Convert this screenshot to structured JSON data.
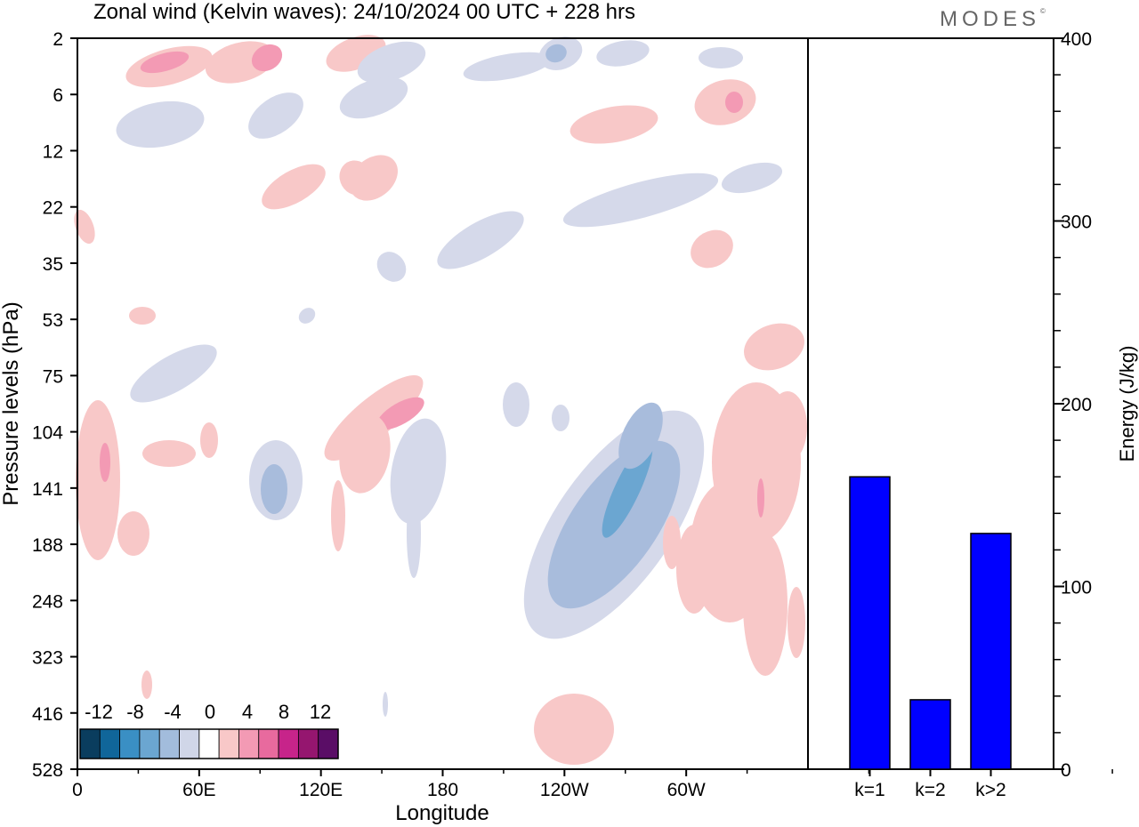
{
  "header": {
    "title": "Zonal wind (Kelvin waves):  24/10/2024  00 UTC  + 228 hrs",
    "logo": "MODES",
    "logo_mark": "©"
  },
  "chart_data": [
    {
      "type": "heatmap",
      "title": "Zonal wind (Kelvin waves)",
      "xlabel": "Longitude",
      "ylabel": "Pressure levels (hPa)",
      "x_ticks": [
        "0",
        "60E",
        "120E",
        "180",
        "120W",
        "60W"
      ],
      "y_ticks": [
        "2",
        "6",
        "12",
        "22",
        "35",
        "53",
        "75",
        "104",
        "141",
        "188",
        "248",
        "323",
        "416",
        "528"
      ],
      "colorbar": {
        "labels": [
          "-12",
          "-8",
          "-4",
          "0",
          "4",
          "8",
          "12"
        ],
        "colors": [
          "#0a3d5e",
          "#10669a",
          "#3a8fc4",
          "#6ba6d1",
          "#a2bcdc",
          "#d0d6e8",
          "#ffffff",
          "#f8c8c8",
          "#f39ab4",
          "#e86a9e",
          "#c7248a",
          "#95166f",
          "#5a0d66"
        ]
      }
    },
    {
      "type": "bar",
      "categories": [
        "k=1",
        "k=2",
        "k>2"
      ],
      "values": [
        160,
        38,
        129
      ],
      "ylabel": "Energy (J/kg)",
      "ylim": [
        0,
        400
      ],
      "y_ticks": [
        0,
        100,
        200,
        300,
        400
      ],
      "bar_color": "#0000ff"
    }
  ]
}
